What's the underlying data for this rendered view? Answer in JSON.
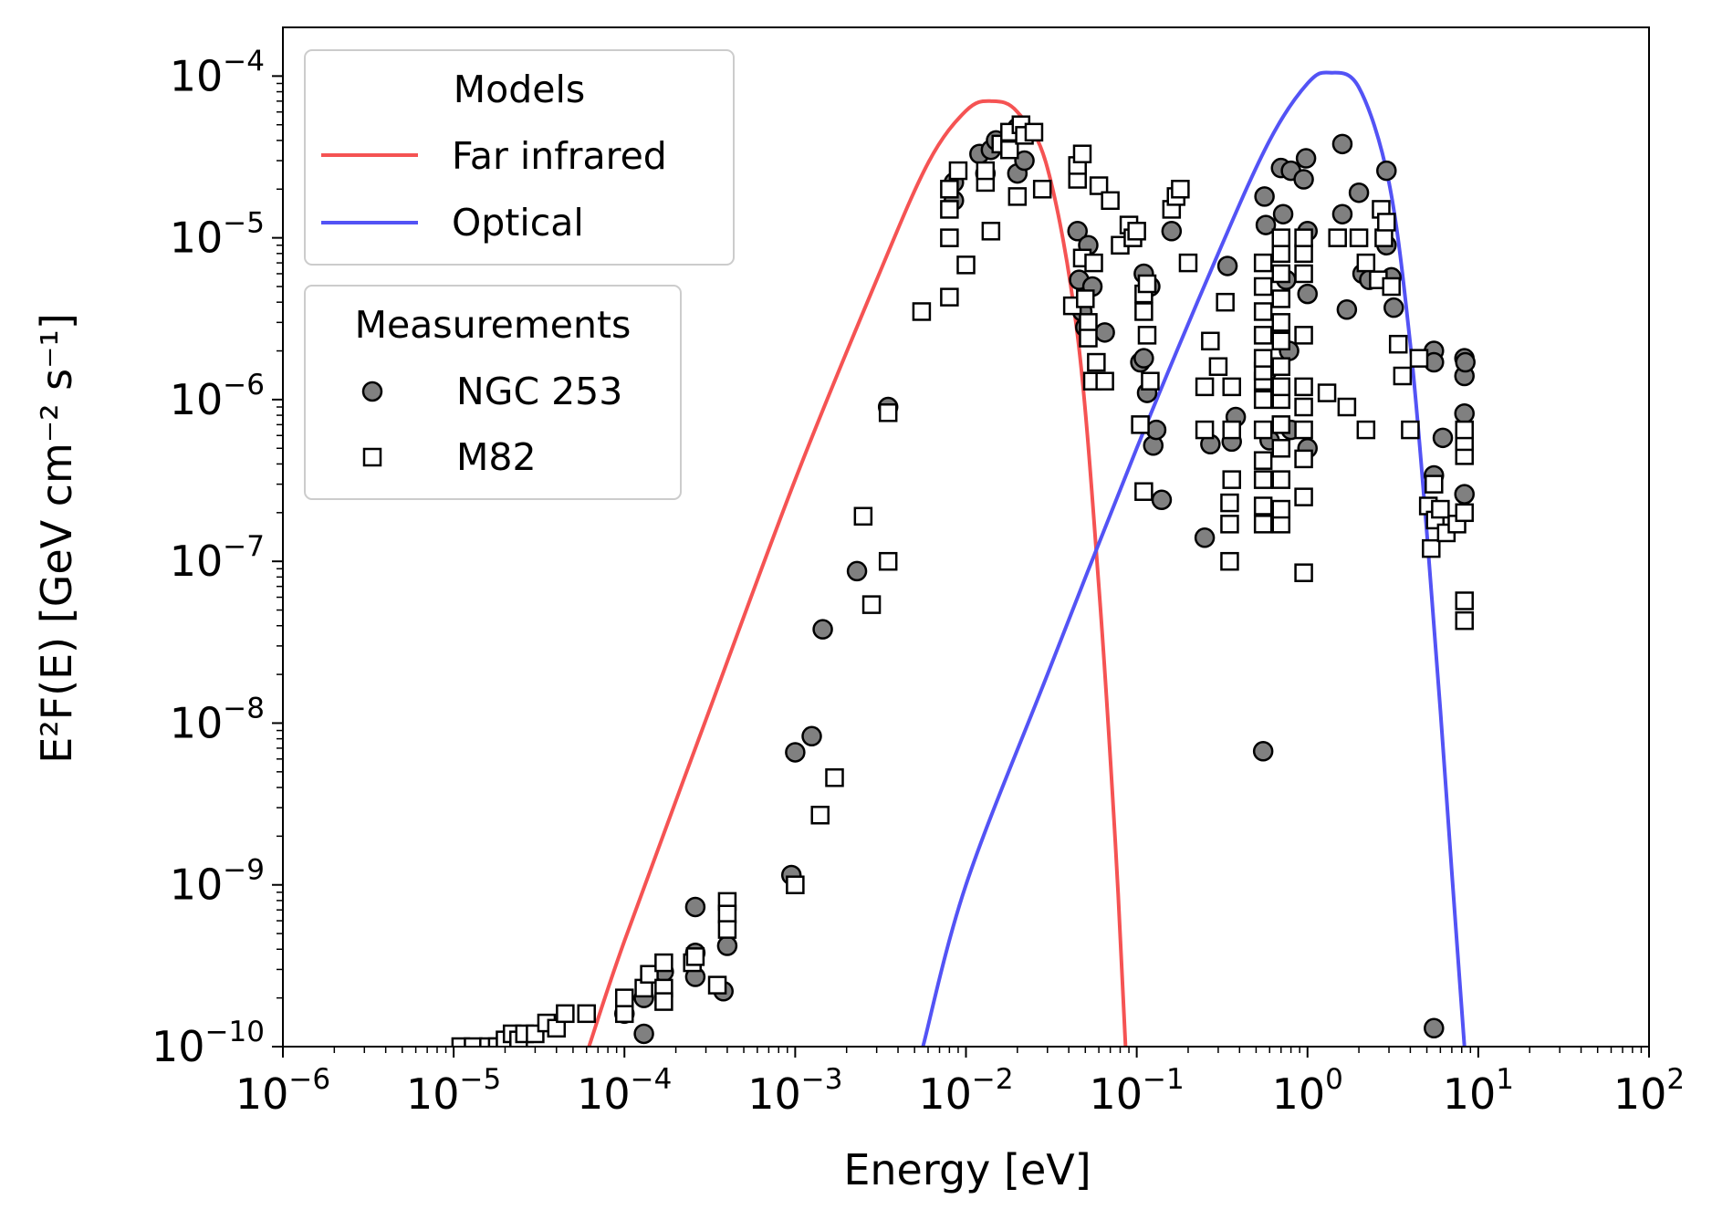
{
  "chart_data": {
    "type": "scatter",
    "xlabel": "Energy [eV]",
    "ylabel": "E²F(E) [GeV cm⁻² s⁻¹]",
    "xscale": "log",
    "yscale": "log",
    "xlim": [
      1e-06,
      100
    ],
    "ylim": [
      1e-10,
      0.0002
    ],
    "grid": false,
    "x_ticks": [
      {
        "base": "10",
        "exp": "−6"
      },
      {
        "base": "10",
        "exp": "−5"
      },
      {
        "base": "10",
        "exp": "−4"
      },
      {
        "base": "10",
        "exp": "−3"
      },
      {
        "base": "10",
        "exp": "−2"
      },
      {
        "base": "10",
        "exp": "−1"
      },
      {
        "base": "10",
        "exp": "0"
      },
      {
        "base": "10",
        "exp": "1"
      },
      {
        "base": "10",
        "exp": "2"
      }
    ],
    "y_ticks": [
      {
        "base": "10",
        "exp": "−10"
      },
      {
        "base": "10",
        "exp": "−9"
      },
      {
        "base": "10",
        "exp": "−8"
      },
      {
        "base": "10",
        "exp": "−7"
      },
      {
        "base": "10",
        "exp": "−6"
      },
      {
        "base": "10",
        "exp": "−5"
      },
      {
        "base": "10",
        "exp": "−4"
      }
    ],
    "legends": [
      {
        "title": "Models",
        "placement": "upper-left",
        "entries": [
          {
            "label": "Far infrared",
            "marker": "line",
            "color": "#f55353"
          },
          {
            "label": "Optical",
            "marker": "line",
            "color": "#5353f5"
          }
        ]
      },
      {
        "title": "Measurements",
        "placement": "upper-left (below Models)",
        "entries": [
          {
            "label": "NGC 253",
            "marker": "circle",
            "color": "#808080"
          },
          {
            "label": "M82",
            "marker": "square",
            "color": "#ffffff"
          }
        ]
      }
    ],
    "series": [
      {
        "name": "Far infrared",
        "kind": "line",
        "color": "#f55353",
        "points": [
          [
            6.2e-05,
            1e-10
          ],
          [
            0.0001,
            4.5e-10
          ],
          [
            0.0003,
            1.05e-08
          ],
          [
            0.001,
            3.2e-07
          ],
          [
            0.003,
            5.5e-06
          ],
          [
            0.006,
            2.9e-05
          ],
          [
            0.01,
            6.1e-05
          ],
          [
            0.014,
            7e-05
          ],
          [
            0.02,
            6e-05
          ],
          [
            0.03,
            2.7e-05
          ],
          [
            0.045,
            2.5e-06
          ],
          [
            0.06,
            7e-08
          ],
          [
            0.075,
            1.8e-09
          ],
          [
            0.086,
            1e-10
          ]
        ]
      },
      {
        "name": "Optical",
        "kind": "line",
        "color": "#5353f5",
        "points": [
          [
            0.0056,
            1e-10
          ],
          [
            0.01,
            1e-09
          ],
          [
            0.03,
            2e-08
          ],
          [
            0.1,
            5e-07
          ],
          [
            0.3,
            8e-06
          ],
          [
            0.6,
            4e-05
          ],
          [
            1,
            9e-05
          ],
          [
            1.35,
            0.000105
          ],
          [
            2,
            8.5e-05
          ],
          [
            3,
            2.2e-05
          ],
          [
            4,
            2.2e-06
          ],
          [
            5,
            1.5e-07
          ],
          [
            6,
            1.2e-08
          ],
          [
            7,
            1.2e-09
          ],
          [
            8.3,
            1e-10
          ]
        ]
      },
      {
        "name": "NGC 253",
        "kind": "scatter",
        "marker": "circle",
        "color": "#808080",
        "points": [
          [
            0.00013,
            1.2e-10
          ],
          [
            0.00013,
            2e-10
          ],
          [
            0.0001,
            1.6e-10
          ],
          [
            0.00017,
            2.9e-10
          ],
          [
            0.00026,
            7.3e-10
          ],
          [
            0.00026,
            3.8e-10
          ],
          [
            0.00026,
            2.7e-10
          ],
          [
            0.00038,
            2.2e-10
          ],
          [
            0.0004,
            4.2e-10
          ],
          [
            0.00095,
            1.15e-09
          ],
          [
            0.001,
            6.6e-09
          ],
          [
            0.00125,
            8.3e-09
          ],
          [
            0.00145,
            3.8e-08
          ],
          [
            0.0023,
            8.7e-08
          ],
          [
            0.0035,
            9e-07
          ],
          [
            0.0085,
            1.7e-05
          ],
          [
            0.0085,
            2.2e-05
          ],
          [
            0.012,
            3.3e-05
          ],
          [
            0.013,
            2.5e-05
          ],
          [
            0.014,
            3.5e-05
          ],
          [
            0.015,
            4e-05
          ],
          [
            0.02,
            2.5e-05
          ],
          [
            0.02,
            4.8e-05
          ],
          [
            0.022,
            3e-05
          ],
          [
            0.045,
            1.1e-05
          ],
          [
            0.046,
            5.5e-06
          ],
          [
            0.048,
            3.5e-06
          ],
          [
            0.05,
            2.8e-06
          ],
          [
            0.052,
            9e-06
          ],
          [
            0.055,
            5e-06
          ],
          [
            0.065,
            2.6e-06
          ],
          [
            0.105,
            1.7e-06
          ],
          [
            0.11,
            1.8e-06
          ],
          [
            0.11,
            6e-06
          ],
          [
            0.115,
            1.1e-06
          ],
          [
            0.12,
            5e-06
          ],
          [
            0.125,
            5.2e-07
          ],
          [
            0.13,
            6.5e-07
          ],
          [
            0.14,
            2.4e-07
          ],
          [
            0.16,
            1.1e-05
          ],
          [
            0.25,
            1.4e-07
          ],
          [
            0.27,
            5.3e-07
          ],
          [
            0.34,
            6.7e-06
          ],
          [
            0.36,
            5.5e-07
          ],
          [
            0.38,
            7.8e-07
          ],
          [
            0.55,
            6.7e-09
          ],
          [
            0.56,
            1.8e-05
          ],
          [
            0.57,
            1.2e-05
          ],
          [
            0.58,
            1.5e-06
          ],
          [
            0.6,
            5.6e-07
          ],
          [
            0.63,
            2e-07
          ],
          [
            0.7,
            2.7e-05
          ],
          [
            0.72,
            1.4e-05
          ],
          [
            0.75,
            5.5e-06
          ],
          [
            0.78,
            2e-06
          ],
          [
            0.8,
            6.5e-07
          ],
          [
            0.8,
            2.6e-05
          ],
          [
            0.95,
            2.3e-05
          ],
          [
            0.98,
            3.1e-05
          ],
          [
            1.0,
            1.1e-05
          ],
          [
            1.0,
            4.5e-06
          ],
          [
            1.0,
            5e-07
          ],
          [
            1.6,
            3.8e-05
          ],
          [
            1.6,
            1.4e-05
          ],
          [
            1.7,
            3.6e-06
          ],
          [
            2.0,
            1.9e-05
          ],
          [
            2.1,
            6e-06
          ],
          [
            2.3,
            5.5e-06
          ],
          [
            2.9,
            2.6e-05
          ],
          [
            2.9,
            9e-06
          ],
          [
            3.1,
            5.7e-06
          ],
          [
            3.2,
            3.7e-06
          ],
          [
            5.5,
            2e-06
          ],
          [
            5.5,
            1.7e-06
          ],
          [
            5.5,
            3.4e-07
          ],
          [
            5.5,
            1.3e-10
          ],
          [
            6.2,
            5.8e-07
          ],
          [
            8.3,
            1.8e-06
          ],
          [
            8.3,
            1.4e-06
          ],
          [
            8.3,
            8.2e-07
          ],
          [
            8.3,
            2.6e-07
          ],
          [
            8.4,
            1.7e-06
          ]
        ]
      },
      {
        "name": "M82",
        "kind": "scatter",
        "marker": "square",
        "color": "#ffffff",
        "points": [
          [
            1.1e-05,
            1e-10
          ],
          [
            1.3e-05,
            1e-10
          ],
          [
            1.6e-05,
            1e-10
          ],
          [
            1.8e-05,
            1e-10
          ],
          [
            2e-05,
            1.1e-10
          ],
          [
            2.2e-05,
            1.2e-10
          ],
          [
            2.4e-05,
            1.1e-10
          ],
          [
            2.6e-05,
            1.2e-10
          ],
          [
            3e-05,
            1.2e-10
          ],
          [
            3.5e-05,
            1.4e-10
          ],
          [
            4e-05,
            1.3e-10
          ],
          [
            4.5e-05,
            1.6e-10
          ],
          [
            6e-05,
            1.6e-10
          ],
          [
            0.0001,
            1.6e-10
          ],
          [
            0.0001,
            2e-10
          ],
          [
            0.00013,
            2.3e-10
          ],
          [
            0.00014,
            2.8e-10
          ],
          [
            0.00017,
            3.3e-10
          ],
          [
            0.00017,
            2.3e-10
          ],
          [
            0.00017,
            1.9e-10
          ],
          [
            0.00025,
            3.3e-10
          ],
          [
            0.00026,
            3.6e-10
          ],
          [
            0.00035,
            2.4e-10
          ],
          [
            0.0004,
            7.9e-10
          ],
          [
            0.0004,
            6.6e-10
          ],
          [
            0.0004,
            5.3e-10
          ],
          [
            0.001,
            1e-09
          ],
          [
            0.0014,
            2.7e-09
          ],
          [
            0.0017,
            4.6e-09
          ],
          [
            0.0025,
            1.9e-07
          ],
          [
            0.0028,
            5.4e-08
          ],
          [
            0.0035,
            1e-07
          ],
          [
            0.0035,
            8.3e-07
          ],
          [
            0.0055,
            3.5e-06
          ],
          [
            0.008,
            4.3e-06
          ],
          [
            0.008,
            1e-05
          ],
          [
            0.008,
            1.5e-05
          ],
          [
            0.008,
            2e-05
          ],
          [
            0.009,
            2.6e-05
          ],
          [
            0.01,
            6.8e-06
          ],
          [
            0.013,
            2.2e-05
          ],
          [
            0.013,
            2.6e-05
          ],
          [
            0.014,
            1.1e-05
          ],
          [
            0.016,
            3.8e-05
          ],
          [
            0.018,
            3.5e-05
          ],
          [
            0.018,
            4.5e-05
          ],
          [
            0.02,
            1.8e-05
          ],
          [
            0.021,
            5e-05
          ],
          [
            0.022,
            4.3e-05
          ],
          [
            0.025,
            4.5e-05
          ],
          [
            0.028,
            2e-05
          ],
          [
            0.042,
            3.8e-06
          ],
          [
            0.045,
            2.3e-05
          ],
          [
            0.045,
            2.8e-05
          ],
          [
            0.048,
            3.3e-05
          ],
          [
            0.048,
            7.5e-06
          ],
          [
            0.05,
            4.2e-06
          ],
          [
            0.052,
            3e-06
          ],
          [
            0.052,
            2.4e-06
          ],
          [
            0.055,
            1.3e-06
          ],
          [
            0.056,
            7e-06
          ],
          [
            0.058,
            1.7e-06
          ],
          [
            0.06,
            2.1e-05
          ],
          [
            0.065,
            1.3e-06
          ],
          [
            0.07,
            1.7e-05
          ],
          [
            0.08,
            9e-06
          ],
          [
            0.09,
            1.2e-05
          ],
          [
            0.095,
            1e-05
          ],
          [
            0.1,
            1.1e-05
          ],
          [
            0.105,
            7e-07
          ],
          [
            0.11,
            2.7e-07
          ],
          [
            0.11,
            4.5e-06
          ],
          [
            0.11,
            3.5e-06
          ],
          [
            0.115,
            2.5e-06
          ],
          [
            0.115,
            5.2e-06
          ],
          [
            0.12,
            1.3e-06
          ],
          [
            0.16,
            1.5e-05
          ],
          [
            0.17,
            1.8e-05
          ],
          [
            0.18,
            2e-05
          ],
          [
            0.2,
            7e-06
          ],
          [
            0.25,
            6.5e-07
          ],
          [
            0.25,
            1.2e-06
          ],
          [
            0.27,
            2.3e-06
          ],
          [
            0.3,
            1.6e-06
          ],
          [
            0.33,
            4e-06
          ],
          [
            0.35,
            1e-07
          ],
          [
            0.35,
            1.7e-07
          ],
          [
            0.35,
            2.3e-07
          ],
          [
            0.36,
            3.2e-07
          ],
          [
            0.36,
            6.5e-07
          ],
          [
            0.36,
            1.2e-06
          ],
          [
            0.55,
            1.7e-07
          ],
          [
            0.55,
            2.2e-07
          ],
          [
            0.55,
            3.2e-07
          ],
          [
            0.55,
            4.2e-07
          ],
          [
            0.55,
            6.5e-07
          ],
          [
            0.55,
            1e-06
          ],
          [
            0.55,
            1.3e-06
          ],
          [
            0.55,
            1.5e-06
          ],
          [
            0.55,
            1.8e-06
          ],
          [
            0.55,
            2.5e-06
          ],
          [
            0.55,
            3.5e-06
          ],
          [
            0.55,
            5e-06
          ],
          [
            0.55,
            7e-06
          ],
          [
            0.7,
            1.7e-07
          ],
          [
            0.7,
            2.1e-07
          ],
          [
            0.7,
            3.2e-07
          ],
          [
            0.7,
            5e-07
          ],
          [
            0.7,
            7e-07
          ],
          [
            0.7,
            1e-06
          ],
          [
            0.7,
            1.2e-06
          ],
          [
            0.7,
            1.6e-06
          ],
          [
            0.7,
            2.3e-06
          ],
          [
            0.7,
            3e-06
          ],
          [
            0.7,
            4.2e-06
          ],
          [
            0.7,
            6e-06
          ],
          [
            0.7,
            8e-06
          ],
          [
            0.7,
            1e-05
          ],
          [
            0.95,
            8.5e-08
          ],
          [
            0.95,
            2.5e-07
          ],
          [
            0.95,
            4.3e-07
          ],
          [
            0.95,
            6.5e-07
          ],
          [
            0.95,
            9e-07
          ],
          [
            0.95,
            1.2e-06
          ],
          [
            0.95,
            2.5e-06
          ],
          [
            0.95,
            6e-06
          ],
          [
            0.95,
            8e-06
          ],
          [
            0.95,
            1e-05
          ],
          [
            1.3,
            1.1e-06
          ],
          [
            1.5,
            1e-05
          ],
          [
            1.7,
            9e-07
          ],
          [
            2.0,
            1e-05
          ],
          [
            2.2,
            6.5e-07
          ],
          [
            2.2,
            7e-06
          ],
          [
            2.6,
            5.5e-06
          ],
          [
            2.7,
            1.5e-05
          ],
          [
            2.8,
            1e-05
          ],
          [
            2.9,
            1.25e-05
          ],
          [
            3.1,
            5e-06
          ],
          [
            3.4,
            2.2e-06
          ],
          [
            3.6,
            1.4e-06
          ],
          [
            4.0,
            6.5e-07
          ],
          [
            4.5,
            1.8e-06
          ],
          [
            5.1,
            2.2e-07
          ],
          [
            5.3,
            1.2e-07
          ],
          [
            5.5,
            3e-07
          ],
          [
            5.6,
            1.8e-07
          ],
          [
            6.0,
            2.1e-07
          ],
          [
            6.5,
            1.5e-07
          ],
          [
            7.5,
            1.7e-07
          ],
          [
            8.3,
            4.3e-08
          ],
          [
            8.3,
            5.7e-08
          ],
          [
            8.3,
            2e-07
          ],
          [
            8.3,
            4.5e-07
          ],
          [
            8.3,
            5.5e-07
          ],
          [
            8.3,
            6.5e-07
          ]
        ]
      }
    ]
  }
}
